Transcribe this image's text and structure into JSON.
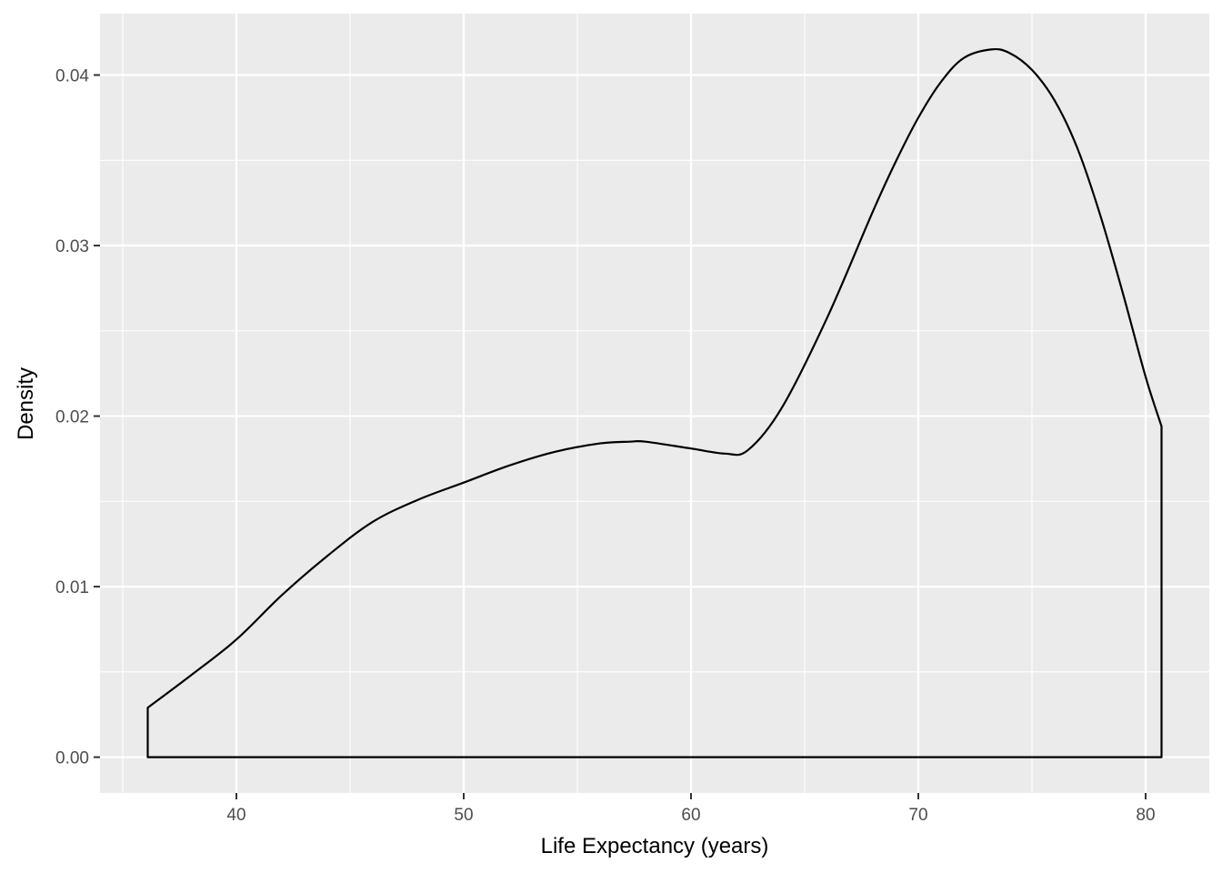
{
  "chart_data": {
    "type": "area",
    "title": "",
    "xlabel": "Life Expectancy (years)",
    "ylabel": "Density",
    "xlim": [
      34.0,
      82.8
    ],
    "ylim": [
      -0.0021,
      0.0436
    ],
    "x_ticks": [
      40,
      50,
      60,
      70,
      80
    ],
    "x_minor_ticks": [
      35,
      45,
      55,
      65,
      75
    ],
    "y_ticks": [
      0.0,
      0.01,
      0.02,
      0.03,
      0.04
    ],
    "y_tick_labels": [
      "0.00",
      "0.01",
      "0.02",
      "0.03",
      "0.04"
    ],
    "y_minor_ticks": [
      0.005,
      0.015,
      0.025,
      0.035
    ],
    "x_tick_labels": [
      "40",
      "50",
      "60",
      "70",
      "80"
    ],
    "grid": true,
    "legend": "none",
    "colors": {
      "panel": "#ebebeb",
      "grid": "#ffffff",
      "line": "#000000",
      "tick_text": "#4d4d4d"
    },
    "series": [
      {
        "x": [
          36.1,
          38.0,
          40.0,
          42.0,
          44.0,
          46.0,
          48.0,
          50.0,
          52.0,
          54.0,
          56.0,
          57.3,
          58.0,
          60.0,
          61.5,
          62.5,
          64.0,
          66.0,
          68.0,
          69.0,
          70.0,
          71.0,
          72.0,
          73.2,
          74.0,
          75.0,
          76.0,
          77.0,
          78.0,
          79.0,
          80.0,
          80.7
        ],
        "y": [
          0.0029,
          0.0048,
          0.0069,
          0.0095,
          0.0118,
          0.0138,
          0.0151,
          0.0161,
          0.0171,
          0.0179,
          0.0184,
          0.0185,
          0.0185,
          0.0181,
          0.0178,
          0.018,
          0.0205,
          0.0258,
          0.032,
          0.0349,
          0.0375,
          0.0396,
          0.041,
          0.0415,
          0.0413,
          0.0403,
          0.0385,
          0.0357,
          0.0318,
          0.0272,
          0.0223,
          0.0194
        ]
      }
    ]
  }
}
